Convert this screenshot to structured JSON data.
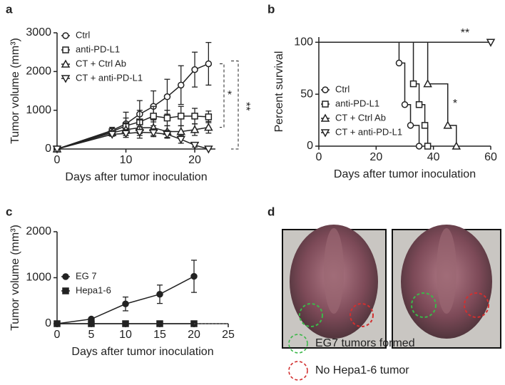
{
  "panel_labels": [
    "a",
    "b",
    "c",
    "d"
  ],
  "chart_data": [
    {
      "type": "line",
      "xlabel": "Days after tumor inoculation",
      "ylabel": "Tumor volume (mm³)",
      "x": [
        0,
        8,
        10,
        12,
        14,
        16,
        18,
        20,
        22
      ],
      "xlim": [
        0,
        23
      ],
      "xticks": [
        0,
        10,
        20
      ],
      "ylim": [
        0,
        3000
      ],
      "yticks": [
        0,
        1000,
        2000,
        3000
      ],
      "legend": "upper left",
      "series": [
        {
          "name": "Ctrl",
          "color": "#222222",
          "marker": "circle",
          "values": [
            0,
            480,
            650,
            900,
            1100,
            1350,
            1650,
            2050,
            2200
          ],
          "errors": [
            0,
            80,
            300,
            350,
            400,
            450,
            500,
            450,
            550
          ]
        },
        {
          "name": "anti-PD-L1",
          "color": "#222222",
          "marker": "square",
          "values": [
            0,
            450,
            600,
            700,
            850,
            800,
            850,
            850,
            830
          ],
          "errors": [
            0,
            60,
            200,
            300,
            250,
            200,
            250,
            200,
            150
          ]
        },
        {
          "name": "CT + Ctrl Ab",
          "color": "#222222",
          "marker": "triangle-up",
          "values": [
            0,
            420,
            500,
            550,
            550,
            450,
            450,
            500,
            560
          ],
          "errors": [
            0,
            60,
            150,
            200,
            200,
            150,
            150,
            150,
            150
          ]
        },
        {
          "name": "CT + anti-PD-L1",
          "color": "#222222",
          "marker": "triangle-down",
          "values": [
            0,
            380,
            400,
            430,
            420,
            380,
            250,
            100,
            0
          ],
          "errors": [
            0,
            50,
            100,
            150,
            100,
            100,
            100,
            50,
            0
          ]
        }
      ],
      "annotations": [
        {
          "text": "*"
        },
        {
          "text": "**"
        }
      ]
    },
    {
      "type": "step",
      "xlabel": "Days after tumor inoculation",
      "ylabel": "Percent survival",
      "xlim": [
        0,
        60
      ],
      "xticks": [
        0,
        20,
        40,
        60
      ],
      "ylim": [
        0,
        105
      ],
      "yticks": [
        0,
        50,
        100
      ],
      "legend": "lower left",
      "series": [
        {
          "name": "Ctrl",
          "color": "#222222",
          "marker": "circle",
          "x": [
            0,
            28,
            30,
            32,
            35
          ],
          "values": [
            100,
            80,
            40,
            20,
            0
          ]
        },
        {
          "name": "anti-PD-L1",
          "color": "#222222",
          "marker": "square",
          "x": [
            0,
            33,
            35,
            37,
            38
          ],
          "values": [
            100,
            60,
            40,
            20,
            0
          ]
        },
        {
          "name": "CT + Ctrl Ab",
          "color": "#222222",
          "marker": "triangle-up",
          "x": [
            0,
            38,
            45,
            48
          ],
          "values": [
            100,
            60,
            20,
            0
          ]
        },
        {
          "name": "CT + anti-PD-L1",
          "color": "#222222",
          "marker": "triangle-down",
          "x": [
            0,
            60
          ],
          "values": [
            100,
            100
          ]
        }
      ],
      "annotations": [
        {
          "text": "**"
        },
        {
          "text": "*"
        }
      ]
    },
    {
      "type": "line",
      "xlabel": "Days after tumor inoculation",
      "ylabel": "Tumor volume (mm³)",
      "x": [
        0,
        5,
        10,
        15,
        20
      ],
      "xlim": [
        0,
        25
      ],
      "xticks": [
        0,
        5,
        10,
        15,
        20,
        25
      ],
      "ylim": [
        0,
        2000
      ],
      "yticks": [
        0,
        1000,
        2000
      ],
      "legend": "upper left",
      "series": [
        {
          "name": "EG 7",
          "color": "#222222",
          "marker": "circle-filled",
          "values": [
            0,
            100,
            430,
            640,
            1030
          ],
          "errors": [
            0,
            30,
            150,
            200,
            350
          ]
        },
        {
          "name": "Hepa1-6",
          "color": "#222222",
          "marker": "square-filled",
          "values": [
            0,
            0,
            0,
            0,
            0
          ],
          "errors": [
            0,
            0,
            0,
            0,
            0
          ]
        }
      ],
      "annotations": []
    }
  ],
  "panel_d": {
    "legend": [
      {
        "text": "EG7 tumors formed",
        "color": "#3cb84a"
      },
      {
        "text": "No Hepa1-6 tumor",
        "color": "#d23030"
      }
    ]
  }
}
